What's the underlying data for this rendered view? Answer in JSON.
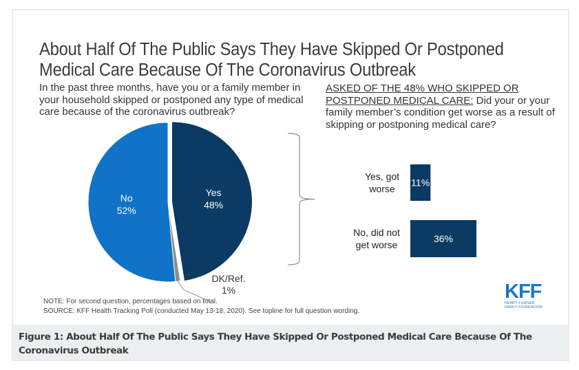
{
  "figure": {
    "title": "About Half Of The Public Says They Have Skipped Or Postponed Medical Care Because Of The Coronavirus Outbreak",
    "question1": "In the past three months, have you or a family member in your household skipped or postponed any type of medical care because of the coronavirus outbreak?",
    "question2_prefix": "ASKED OF THE 48% WHO SKIPPED OR POSTPONED MEDICAL CARE:",
    "question2_text": " Did your or your family member’s condition get worse as a result of skipping or postponing medical care?",
    "note": "NOTE: For second question, percentages based on total.",
    "source": "SOURCE: KFF Health Tracking Poll (conducted May 13-18, 2020). See topline for full question wording.",
    "logo": {
      "name": "KFF",
      "subtitle_line1": "HENRY J KAISER",
      "subtitle_line2": "FAMILY FOUNDATION",
      "color": "#1a75c9"
    },
    "caption": "Figure 1: About Half Of The Public Says They Have Skipped Or Postponed Medical Care Because Of The Coronavirus Outbreak"
  },
  "chart_data": [
    {
      "type": "pie",
      "title": "In the past three months, have you or a family member in your household skipped or postponed any type of medical care because of the coronavirus outbreak?",
      "slices": [
        {
          "label": "Yes",
          "value": 48,
          "display": "48%",
          "color": "#0b3a63",
          "exploded": true
        },
        {
          "label": "DK/Ref.",
          "value": 1,
          "display": "1%",
          "color": "#8c8c8c",
          "exploded": false
        },
        {
          "label": "No",
          "value": 52,
          "display": "52%",
          "color": "#1073c7",
          "exploded": false
        }
      ]
    },
    {
      "type": "bar",
      "orientation": "horizontal",
      "title": "ASKED OF THE 48% WHO SKIPPED OR POSTPONED MEDICAL CARE: Did your or your family member’s condition get worse as a result of skipping or postponing medical care?",
      "categories": [
        "Yes, got worse",
        "No, did not get worse"
      ],
      "category_lines": [
        [
          "Yes, got",
          "worse"
        ],
        [
          "No, did not",
          "get worse"
        ]
      ],
      "values": [
        11,
        36
      ],
      "labels": [
        "11%",
        "36%"
      ],
      "unit": "%",
      "color": "#0b3a63",
      "xlim": [
        0,
        36
      ]
    }
  ]
}
